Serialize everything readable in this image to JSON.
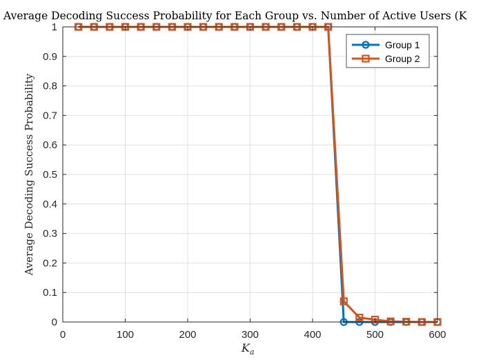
{
  "chart_data": {
    "type": "line",
    "title": "Average Decoding Success Probability for Each Group vs. Number of Active Users (K",
    "xlabel": "K",
    "xlabel_subscript": "a",
    "ylabel": "Average Decoding Success Probability",
    "xlim": [
      0,
      600
    ],
    "ylim": [
      0,
      1
    ],
    "x_ticks": [
      "0",
      "100",
      "200",
      "300",
      "400",
      "500",
      "600"
    ],
    "y_ticks": [
      "0",
      "0.1",
      "0.2",
      "0.3",
      "0.4",
      "0.5",
      "0.6",
      "0.7",
      "0.8",
      "0.9",
      "1"
    ],
    "grid": true,
    "legend_position": "top-right",
    "x": [
      25,
      50,
      75,
      100,
      125,
      150,
      175,
      200,
      225,
      250,
      275,
      300,
      325,
      350,
      375,
      400,
      425,
      450,
      475,
      500,
      525,
      550,
      575,
      600
    ],
    "series": [
      {
        "name": "Group 1",
        "color": "#0072BD",
        "marker": "circle",
        "values": [
          1,
          1,
          1,
          1,
          1,
          1,
          1,
          1,
          1,
          1,
          1,
          1,
          1,
          1,
          1,
          1,
          1,
          0,
          0,
          0,
          0,
          0,
          0,
          0
        ]
      },
      {
        "name": "Group 2",
        "color": "#D95319",
        "marker": "square",
        "values": [
          1,
          1,
          1,
          1,
          1,
          1,
          1,
          1,
          1,
          1,
          1,
          1,
          1,
          1,
          1,
          1,
          1,
          0.07,
          0.015,
          0.008,
          0.002,
          0.001,
          0,
          0
        ]
      }
    ]
  }
}
